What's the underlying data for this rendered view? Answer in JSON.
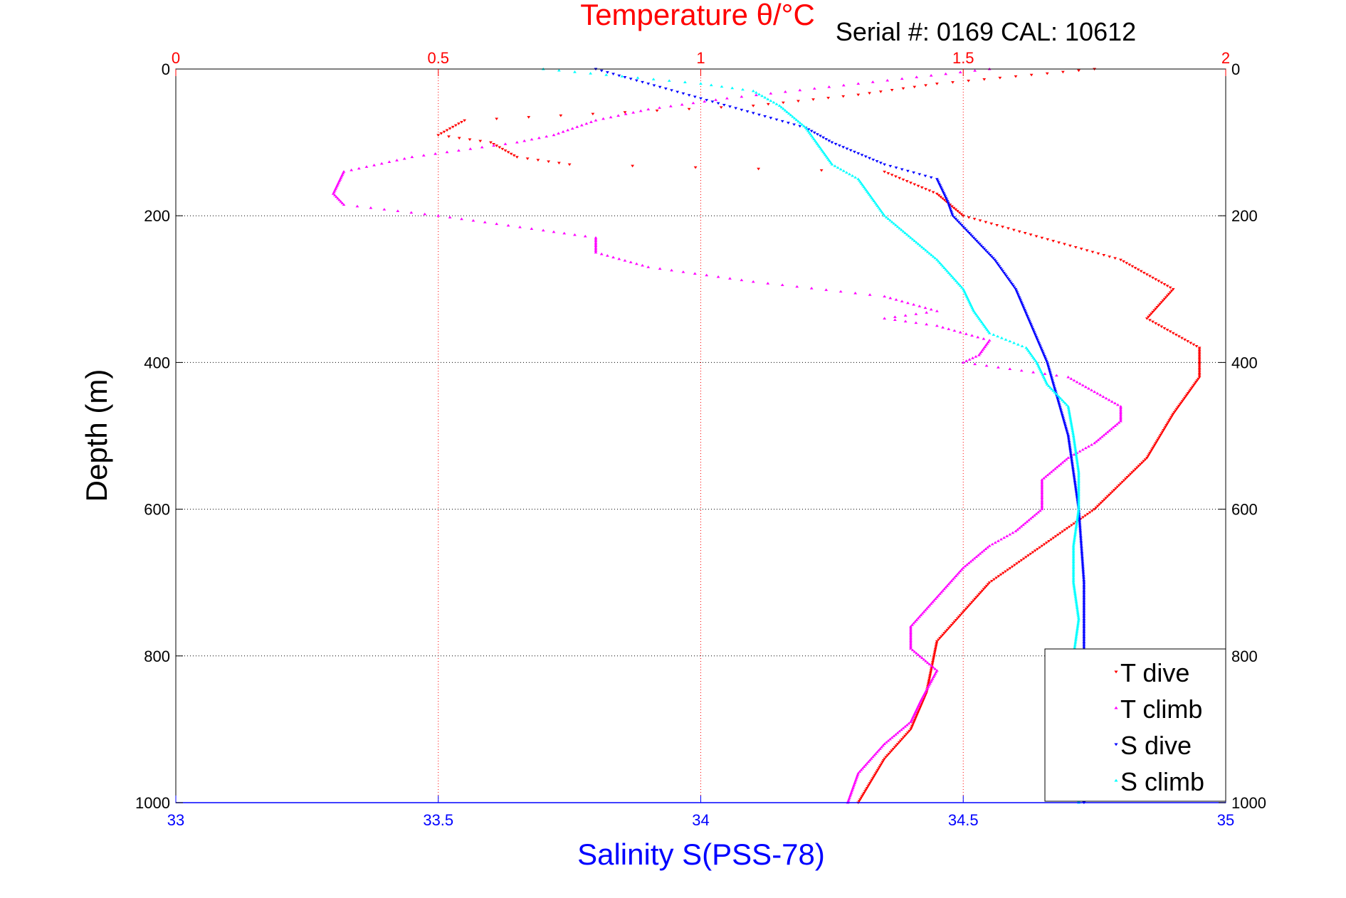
{
  "header": {
    "top_axis_title": "Temperature θ/°C",
    "serial_text": "Serial #: 0169 CAL: 10612"
  },
  "chart_data": {
    "type": "scatter",
    "ylabel": "Depth (m)",
    "xlabel_bottom": "Salinity S(PSS-78)",
    "xlabel_top": "Temperature θ/°C",
    "y_range": [
      0,
      1000
    ],
    "y_inverted": true,
    "y_ticks": [
      0,
      200,
      400,
      600,
      800,
      1000
    ],
    "temperature_range": [
      0,
      2
    ],
    "temperature_ticks": [
      0,
      0.5,
      1,
      1.5,
      2
    ],
    "salinity_range": [
      33,
      35
    ],
    "salinity_ticks": [
      33,
      33.5,
      34,
      34.5,
      35
    ],
    "grid": true,
    "legend_position": "bottom-right",
    "colors": {
      "temperature_axis": "#ff0000",
      "salinity_axis": "#0000ff",
      "grid_vertical": "#ff0000",
      "grid_horizontal": "#000000"
    },
    "series": [
      {
        "name": "T dive",
        "axis": "temperature",
        "marker": "triangle-down",
        "color": "#ff0000",
        "points": [
          [
            1.75,
            0
          ],
          [
            1.6,
            10
          ],
          [
            1.45,
            20
          ],
          [
            1.3,
            35
          ],
          [
            1.1,
            50
          ],
          [
            0.55,
            70
          ],
          [
            0.5,
            90
          ],
          [
            0.6,
            100
          ],
          [
            0.65,
            120
          ],
          [
            0.75,
            130
          ],
          [
            1.35,
            140
          ],
          [
            1.45,
            170
          ],
          [
            1.5,
            200
          ],
          [
            1.65,
            230
          ],
          [
            1.8,
            260
          ],
          [
            1.9,
            300
          ],
          [
            1.85,
            340
          ],
          [
            1.95,
            380
          ],
          [
            1.95,
            420
          ],
          [
            1.9,
            470
          ],
          [
            1.85,
            530
          ],
          [
            1.75,
            600
          ],
          [
            1.65,
            650
          ],
          [
            1.55,
            700
          ],
          [
            1.5,
            740
          ],
          [
            1.45,
            780
          ],
          [
            1.43,
            850
          ],
          [
            1.4,
            900
          ],
          [
            1.35,
            940
          ],
          [
            1.3,
            1000
          ]
        ]
      },
      {
        "name": "T climb",
        "axis": "temperature",
        "marker": "triangle-up",
        "color": "#ff00ff",
        "points": [
          [
            1.55,
            0
          ],
          [
            1.3,
            20
          ],
          [
            1.05,
            40
          ],
          [
            0.9,
            55
          ],
          [
            0.8,
            70
          ],
          [
            0.72,
            90
          ],
          [
            0.65,
            100
          ],
          [
            0.45,
            120
          ],
          [
            0.32,
            140
          ],
          [
            0.3,
            170
          ],
          [
            0.32,
            185
          ],
          [
            0.5,
            200
          ],
          [
            0.7,
            220
          ],
          [
            0.8,
            230
          ],
          [
            0.8,
            250
          ],
          [
            0.9,
            270
          ],
          [
            1.1,
            290
          ],
          [
            1.35,
            310
          ],
          [
            1.45,
            330
          ],
          [
            1.35,
            340
          ],
          [
            1.45,
            350
          ],
          [
            1.55,
            370
          ],
          [
            1.53,
            390
          ],
          [
            1.5,
            400
          ],
          [
            1.7,
            420
          ],
          [
            1.75,
            440
          ],
          [
            1.8,
            460
          ],
          [
            1.8,
            480
          ],
          [
            1.75,
            510
          ],
          [
            1.7,
            530
          ],
          [
            1.65,
            560
          ],
          [
            1.65,
            600
          ],
          [
            1.6,
            630
          ],
          [
            1.55,
            650
          ],
          [
            1.5,
            680
          ],
          [
            1.45,
            720
          ],
          [
            1.4,
            760
          ],
          [
            1.4,
            790
          ],
          [
            1.45,
            820
          ],
          [
            1.42,
            860
          ],
          [
            1.4,
            890
          ],
          [
            1.35,
            920
          ],
          [
            1.3,
            960
          ],
          [
            1.28,
            1000
          ]
        ]
      },
      {
        "name": "S dive",
        "axis": "salinity",
        "marker": "triangle-down",
        "color": "#0000ff",
        "points": [
          [
            33.8,
            0
          ],
          [
            33.9,
            20
          ],
          [
            34.0,
            40
          ],
          [
            34.1,
            60
          ],
          [
            34.2,
            80
          ],
          [
            34.25,
            100
          ],
          [
            34.35,
            130
          ],
          [
            34.45,
            150
          ],
          [
            34.47,
            180
          ],
          [
            34.48,
            200
          ],
          [
            34.52,
            230
          ],
          [
            34.56,
            260
          ],
          [
            34.6,
            300
          ],
          [
            34.63,
            350
          ],
          [
            34.66,
            400
          ],
          [
            34.68,
            450
          ],
          [
            34.7,
            500
          ],
          [
            34.71,
            550
          ],
          [
            34.72,
            600
          ],
          [
            34.73,
            700
          ],
          [
            34.73,
            800
          ],
          [
            34.73,
            900
          ],
          [
            34.73,
            1000
          ]
        ]
      },
      {
        "name": "S climb",
        "axis": "salinity",
        "marker": "triangle-up",
        "color": "#00ffff",
        "points": [
          [
            33.7,
            0
          ],
          [
            33.85,
            10
          ],
          [
            34.0,
            20
          ],
          [
            34.1,
            30
          ],
          [
            34.15,
            50
          ],
          [
            34.2,
            80
          ],
          [
            34.22,
            100
          ],
          [
            34.25,
            130
          ],
          [
            34.3,
            150
          ],
          [
            34.33,
            180
          ],
          [
            34.35,
            200
          ],
          [
            34.4,
            230
          ],
          [
            34.45,
            260
          ],
          [
            34.5,
            300
          ],
          [
            34.52,
            330
          ],
          [
            34.55,
            360
          ],
          [
            34.62,
            380
          ],
          [
            34.64,
            400
          ],
          [
            34.66,
            430
          ],
          [
            34.7,
            460
          ],
          [
            34.71,
            500
          ],
          [
            34.72,
            550
          ],
          [
            34.72,
            600
          ],
          [
            34.71,
            650
          ],
          [
            34.71,
            700
          ],
          [
            34.72,
            750
          ],
          [
            34.71,
            800
          ],
          [
            34.72,
            900
          ],
          [
            34.72,
            1000
          ]
        ]
      }
    ]
  }
}
